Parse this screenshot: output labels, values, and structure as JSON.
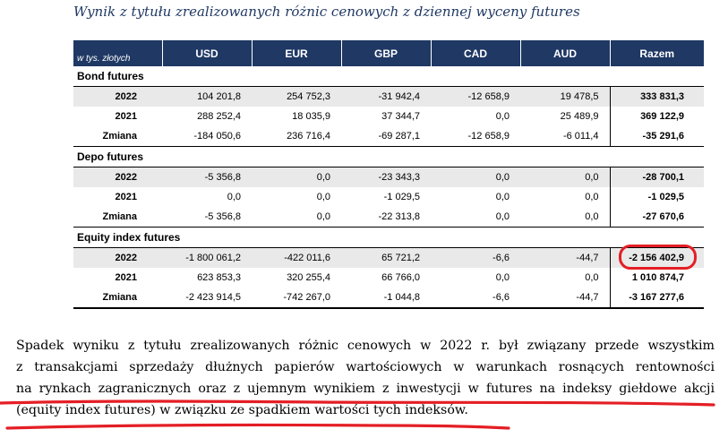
{
  "title": "Wynik z tytułu zrealizowanych różnic cenowych z dziennej wyceny futures",
  "table": {
    "unit_label": "w tys. złotych",
    "columns": [
      "USD",
      "EUR",
      "GBP",
      "CAD",
      "AUD",
      "Razem"
    ],
    "sections": [
      {
        "name": "Bond futures",
        "rows": [
          {
            "label": "2022",
            "values": [
              "104 201,8",
              "254 752,3",
              "-31 942,4",
              "-12 658,9",
              "19 478,5"
            ],
            "total": "333 831,3"
          },
          {
            "label": "2021",
            "values": [
              "288 252,4",
              "18 035,9",
              "37 344,7",
              "0,0",
              "25 489,9"
            ],
            "total": "369 122,9"
          },
          {
            "label": "Zmiana",
            "values": [
              "-184 050,6",
              "236 716,4",
              "-69 287,1",
              "-12 658,9",
              "-6 011,4"
            ],
            "total": "-35 291,6"
          }
        ]
      },
      {
        "name": "Depo futures",
        "rows": [
          {
            "label": "2022",
            "values": [
              "-5 356,8",
              "0,0",
              "-23 343,3",
              "0,0",
              "0,0"
            ],
            "total": "-28 700,1"
          },
          {
            "label": "2021",
            "values": [
              "0,0",
              "0,0",
              "-1 029,5",
              "0,0",
              "0,0"
            ],
            "total": "-1 029,5"
          },
          {
            "label": "Zmiana",
            "values": [
              "-5 356,8",
              "0,0",
              "-22 313,8",
              "0,0",
              "0,0"
            ],
            "total": "-27 670,6"
          }
        ]
      },
      {
        "name": "Equity index futures",
        "rows": [
          {
            "label": "2022",
            "values": [
              "-1 800 061,2",
              "-422 011,6",
              "65 721,2",
              "-6,6",
              "-44,7"
            ],
            "total": "-2 156 402,9"
          },
          {
            "label": "2021",
            "values": [
              "623 853,3",
              "320 255,4",
              "66 766,0",
              "0,0",
              "0,0"
            ],
            "total": "1 010 874,7"
          },
          {
            "label": "Zmiana",
            "values": [
              "-2 423 914,5",
              "-742 267,0",
              "-1 044,8",
              "-6,6",
              "-44,7"
            ],
            "total": "-3 167 277,6"
          }
        ]
      }
    ]
  },
  "paragraph": {
    "lines": [
      "Spadek wyniku z tytułu zrealizowanych różnic cenowych w 2022 r. był związany przede wszystkim",
      "z transakcjami sprzedaży dłużnych papierów wartościowych w warunkach rosnących rentowności",
      "na rynkach zagranicznych oraz z ujemnym wynikiem z inwestycji w futures na indeksy giełdowe akcji",
      "(equity index futures) w związku ze spadkiem wartości tych indeksów."
    ]
  },
  "annotation_colors": {
    "highlight": "#e41e25"
  }
}
